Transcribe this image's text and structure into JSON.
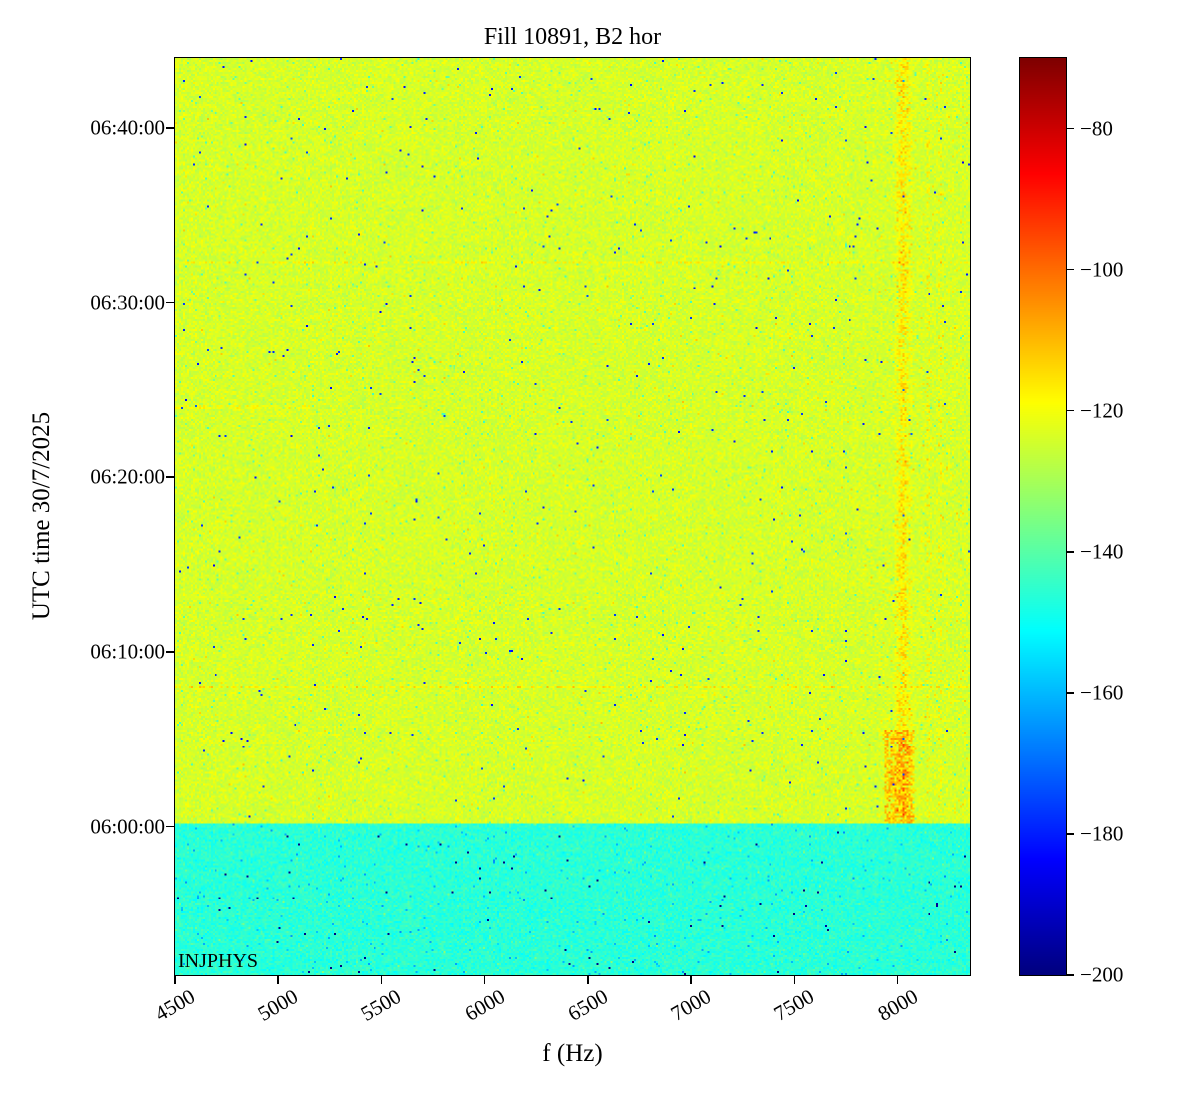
{
  "figure": {
    "title": "Fill 10891, B2 hor",
    "annotation": "INJPHYS"
  },
  "chart_data": {
    "type": "heatmap",
    "title": "Fill 10891, B2 hor",
    "xlabel": "f (Hz)",
    "ylabel": "UTC time 30/7/2025",
    "x_range_hz": [
      4500,
      8350
    ],
    "x_ticks": [
      4500,
      5000,
      5500,
      6000,
      6500,
      7000,
      7500,
      8000
    ],
    "y_ticks": [
      {
        "label": "06:00:00",
        "t": 360
      },
      {
        "label": "06:10:00",
        "t": 370
      },
      {
        "label": "06:20:00",
        "t": 380
      },
      {
        "label": "06:30:00",
        "t": 390
      },
      {
        "label": "06:40:00",
        "t": 400
      }
    ],
    "y_range_min": [
      351.5,
      404
    ],
    "colormap": "jet",
    "vmin": -200,
    "vmax": -70,
    "colorbar_ticks": [
      {
        "value": -80,
        "label": "−80"
      },
      {
        "value": -100,
        "label": "−100"
      },
      {
        "value": -120,
        "label": "−120"
      },
      {
        "value": -140,
        "label": "−140"
      },
      {
        "value": -160,
        "label": "−160"
      },
      {
        "value": -180,
        "label": "−180"
      },
      {
        "value": -200,
        "label": "−200"
      }
    ],
    "background_level_db": -124,
    "preinjection_band": {
      "end_time_min": 360.2,
      "level_db": -146
    },
    "features": {
      "vertical_stripe": {
        "f_lo": 7980,
        "f_hi": 8070,
        "boost_db": 14
      },
      "secondary_stripes": [
        {
          "f": 8150,
          "boost_db": 9
        },
        {
          "f": 8205,
          "boost_db": 7
        }
      ],
      "hotspot": {
        "f_lo": 7940,
        "f_hi": 8080,
        "t_lo": 360.2,
        "t_hi": 365.5,
        "boost_db": 18
      },
      "horizontal_lines": [
        {
          "t_min": 368.0,
          "f_lo": 4500,
          "f_hi": 8350,
          "boost_db": 10
        },
        {
          "t_min": 392.3,
          "f_lo": 4500,
          "f_hi": 8350,
          "boost_db": 8
        },
        {
          "t_min": 384.0,
          "f_lo": 4500,
          "f_hi": 5150,
          "boost_db": 7
        }
      ]
    },
    "annotation": "INJPHYS"
  }
}
